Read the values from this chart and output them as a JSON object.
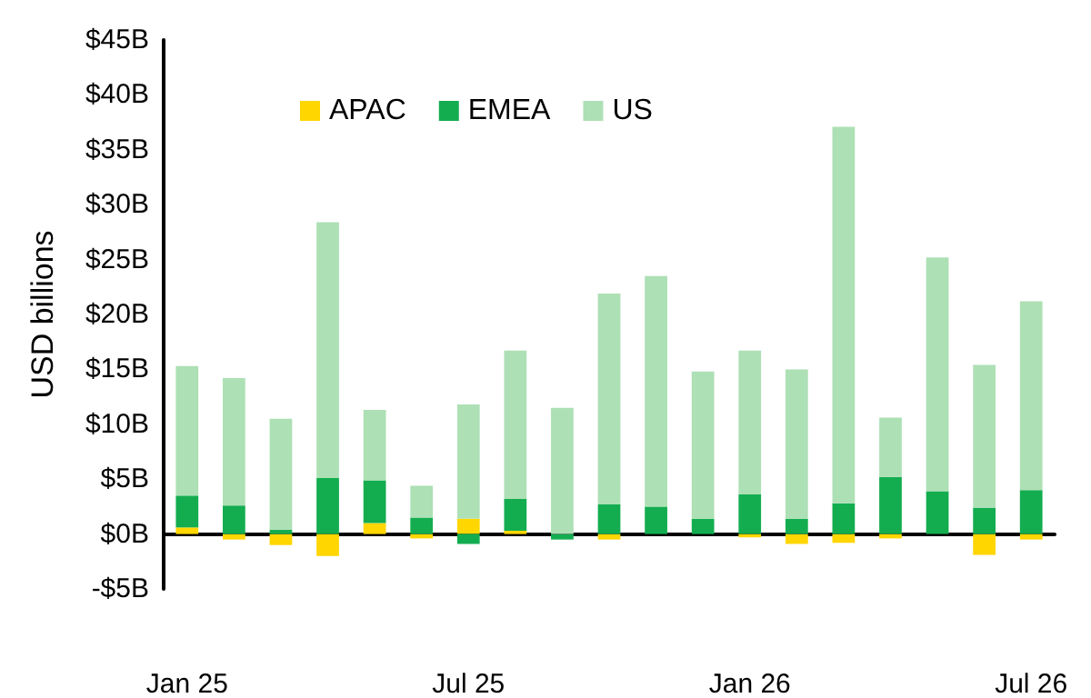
{
  "chart_data": {
    "type": "bar",
    "stacked": true,
    "ylabel": "USD billions",
    "legend": "top",
    "categories": [
      "Jan 25",
      null,
      null,
      null,
      null,
      null,
      "Jul 25",
      null,
      null,
      null,
      null,
      null,
      "Jan 26",
      null,
      null,
      null,
      null,
      null,
      "Jul 26"
    ],
    "series": [
      {
        "name": "APAC",
        "color": "#ffd600",
        "values": [
          0.6,
          -0.5,
          -1.0,
          -2.0,
          1.0,
          -0.4,
          1.4,
          0.3,
          0,
          -0.5,
          0,
          0,
          -0.3,
          -0.9,
          -0.8,
          -0.4,
          0,
          -1.9,
          -0.5
        ]
      },
      {
        "name": "EMEA",
        "color": "#13ad4f",
        "values": [
          2.9,
          2.6,
          0.4,
          5.1,
          3.9,
          1.5,
          -0.9,
          2.9,
          -0.5,
          2.7,
          2.5,
          1.4,
          3.6,
          1.4,
          2.8,
          5.2,
          3.9,
          2.4,
          4.0
        ]
      },
      {
        "name": "US",
        "color": "#ade0b5",
        "values": [
          11.8,
          11.6,
          10.1,
          23.3,
          6.4,
          2.9,
          10.4,
          13.5,
          11.5,
          19.2,
          21.0,
          13.4,
          13.1,
          13.6,
          34.3,
          5.4,
          21.3,
          13.0,
          17.2
        ]
      }
    ],
    "ylim": [
      -5,
      45
    ],
    "yticks": [
      {
        "value": -5,
        "label": "-$5B"
      },
      {
        "value": 0,
        "label": "$0B"
      },
      {
        "value": 5,
        "label": "$5B"
      },
      {
        "value": 10,
        "label": "$10B"
      },
      {
        "value": 15,
        "label": "$15B"
      },
      {
        "value": 20,
        "label": "$20B"
      },
      {
        "value": 25,
        "label": "$25B"
      },
      {
        "value": 30,
        "label": "$30B"
      },
      {
        "value": 35,
        "label": "$35B"
      },
      {
        "value": 40,
        "label": "$40B"
      },
      {
        "value": 45,
        "label": "$45B"
      }
    ]
  }
}
